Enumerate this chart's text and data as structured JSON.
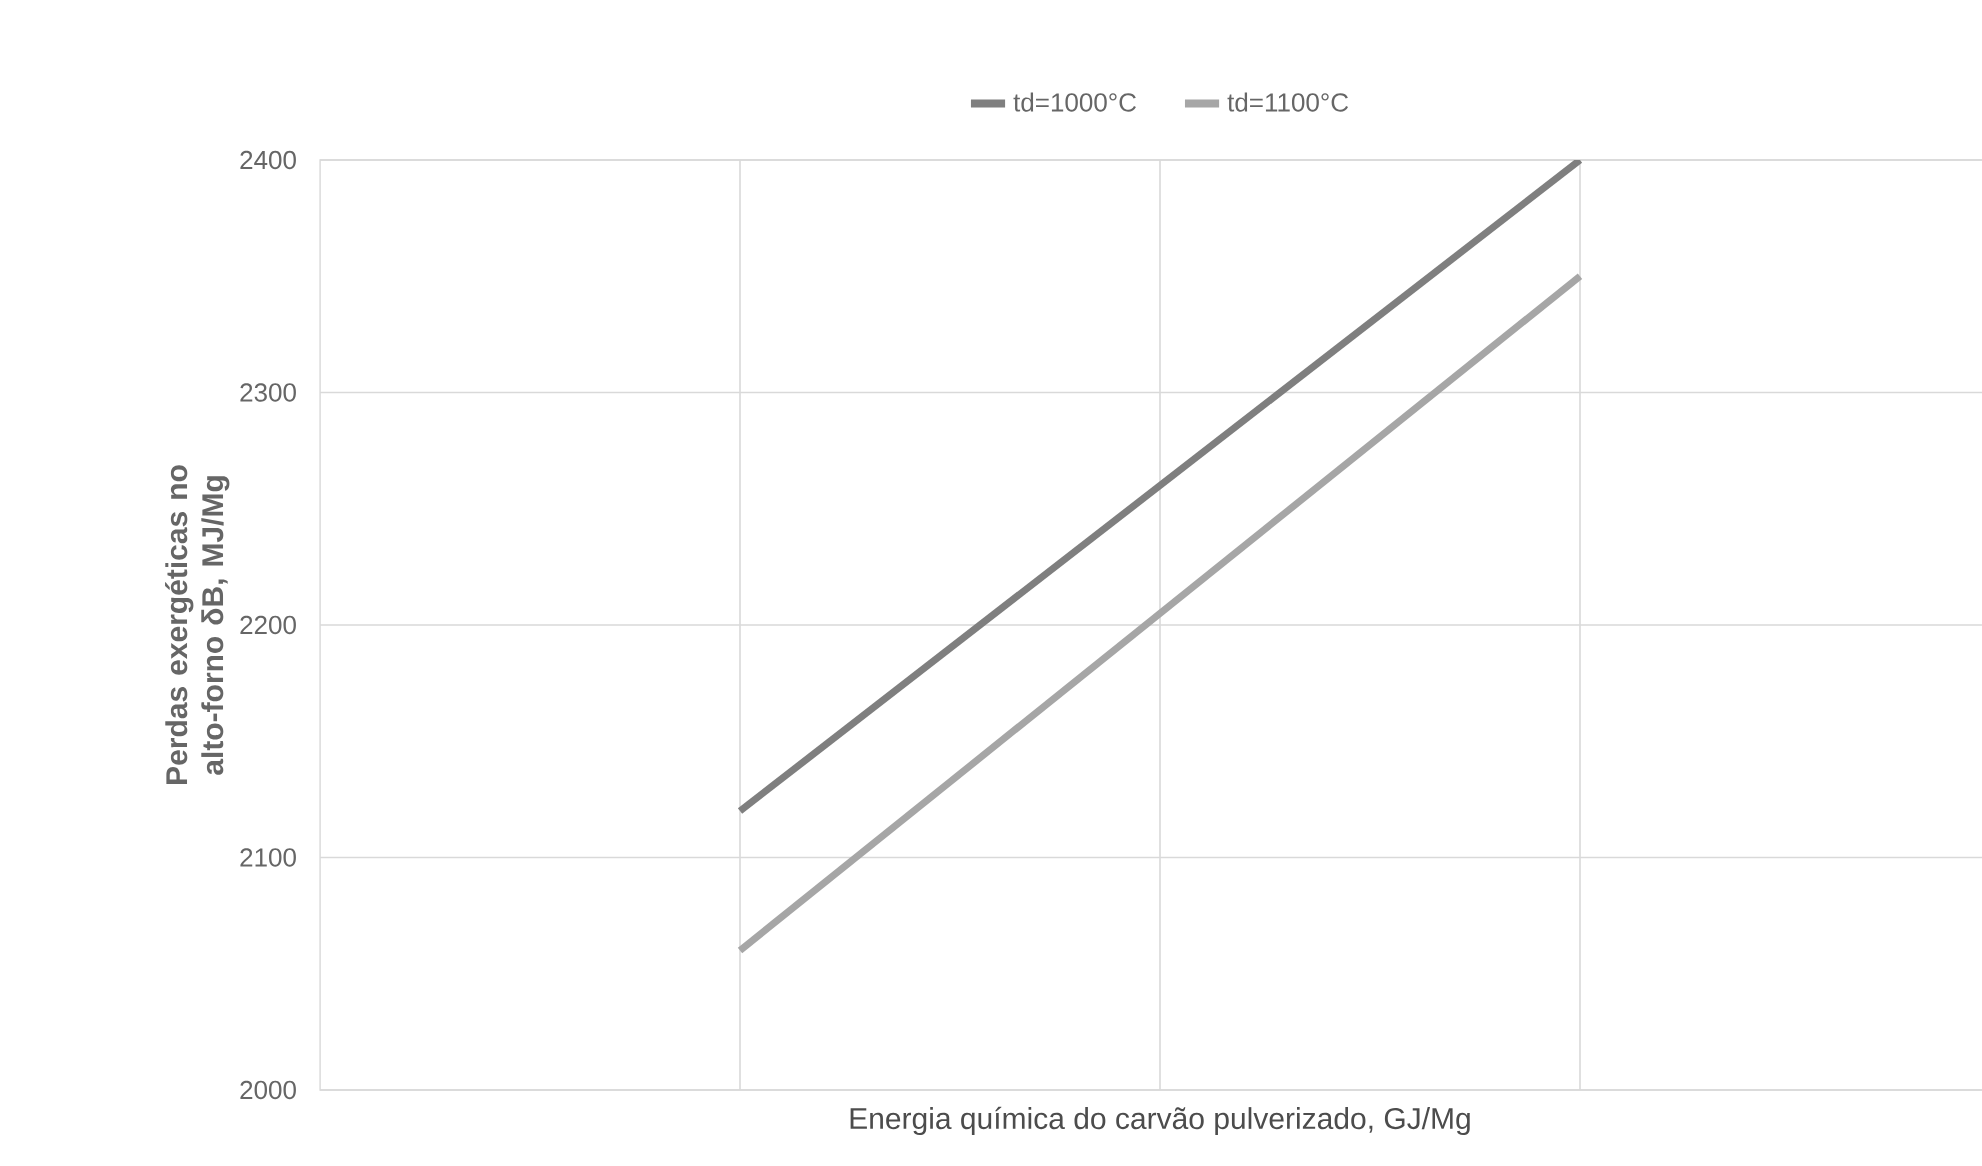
{
  "chart_data": {
    "type": "line",
    "xlabel": "Energia química do carvão pulverizado, GJ/Mg",
    "ylabel": "Perdas exergéticas no alto-forno δB, MJ/Mg",
    "categories": [
      null,
      null
    ],
    "series": [
      {
        "name": "td=1000°C",
        "color": "#7f7f7f",
        "values": [
          2120,
          2400
        ]
      },
      {
        "name": "td=1100°C",
        "color": "#a6a6a6",
        "values": [
          2060,
          2350
        ]
      }
    ],
    "ylim": [
      2000,
      2400
    ],
    "yticks": [
      2000,
      2100,
      2200,
      2300,
      2400
    ],
    "grid": true,
    "legend": "top",
    "marker": "none",
    "line_style": "solid"
  }
}
